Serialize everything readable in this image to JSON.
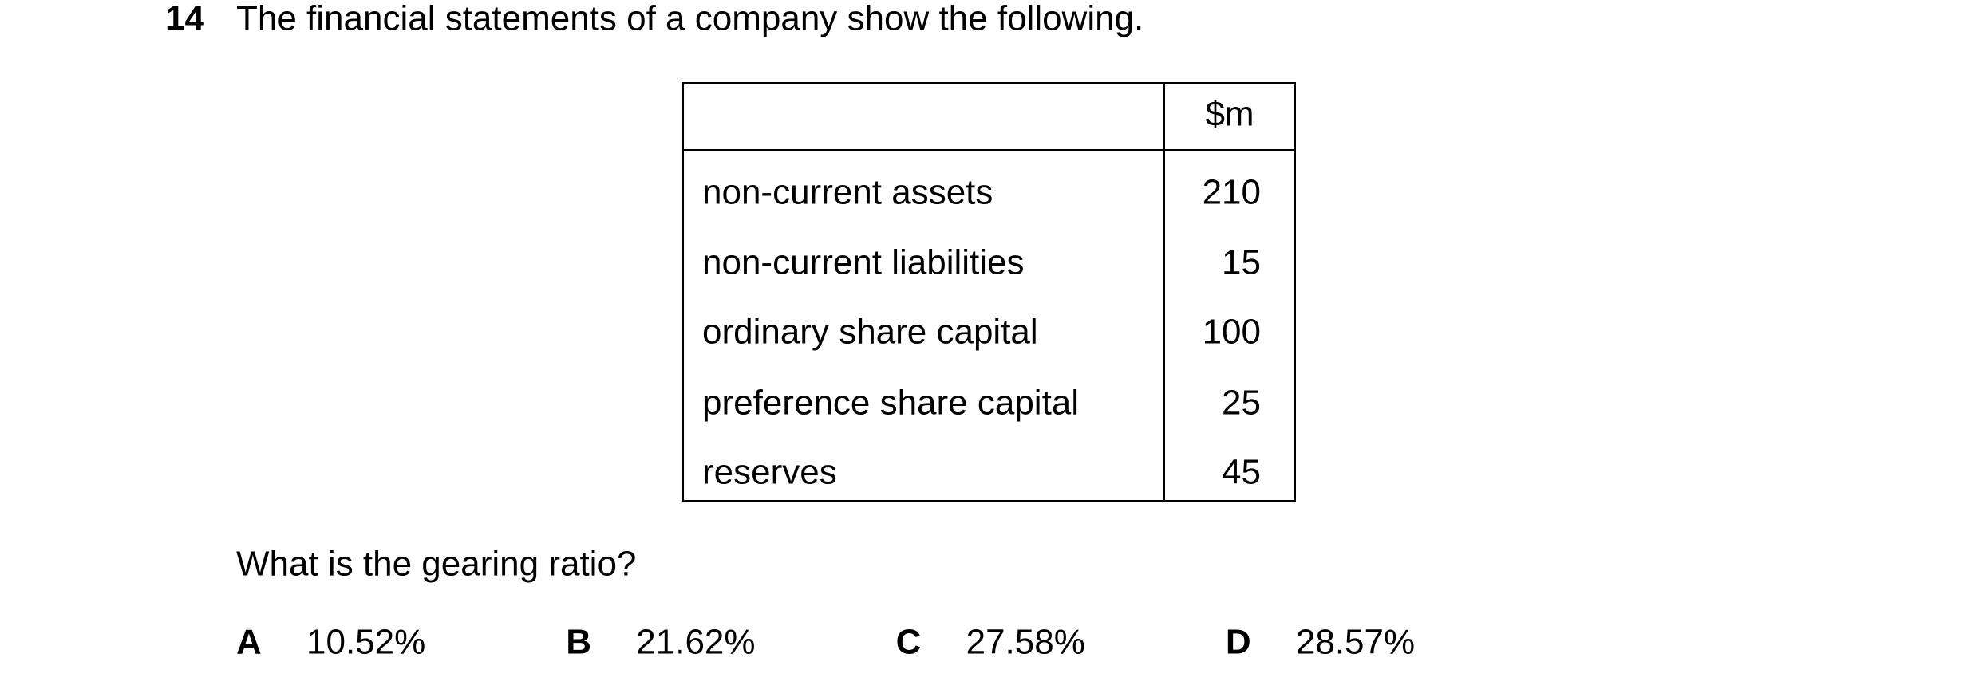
{
  "question": {
    "number": "14",
    "text": "The financial statements of a company show the following.",
    "table": {
      "header": "$m",
      "rows": [
        [
          "non-current assets",
          210
        ],
        [
          "non-current liabilities",
          15
        ],
        [
          "ordinary share capital",
          100
        ],
        [
          "preference share capital",
          25
        ],
        [
          "reserves",
          45
        ]
      ]
    },
    "prompt": "What is the gearing ratio?",
    "options": [
      {
        "letter": "A",
        "text": "10.52%"
      },
      {
        "letter": "B",
        "text": "21.62%"
      },
      {
        "letter": "C",
        "text": "27.58%"
      },
      {
        "letter": "D",
        "text": "28.57%"
      }
    ]
  }
}
